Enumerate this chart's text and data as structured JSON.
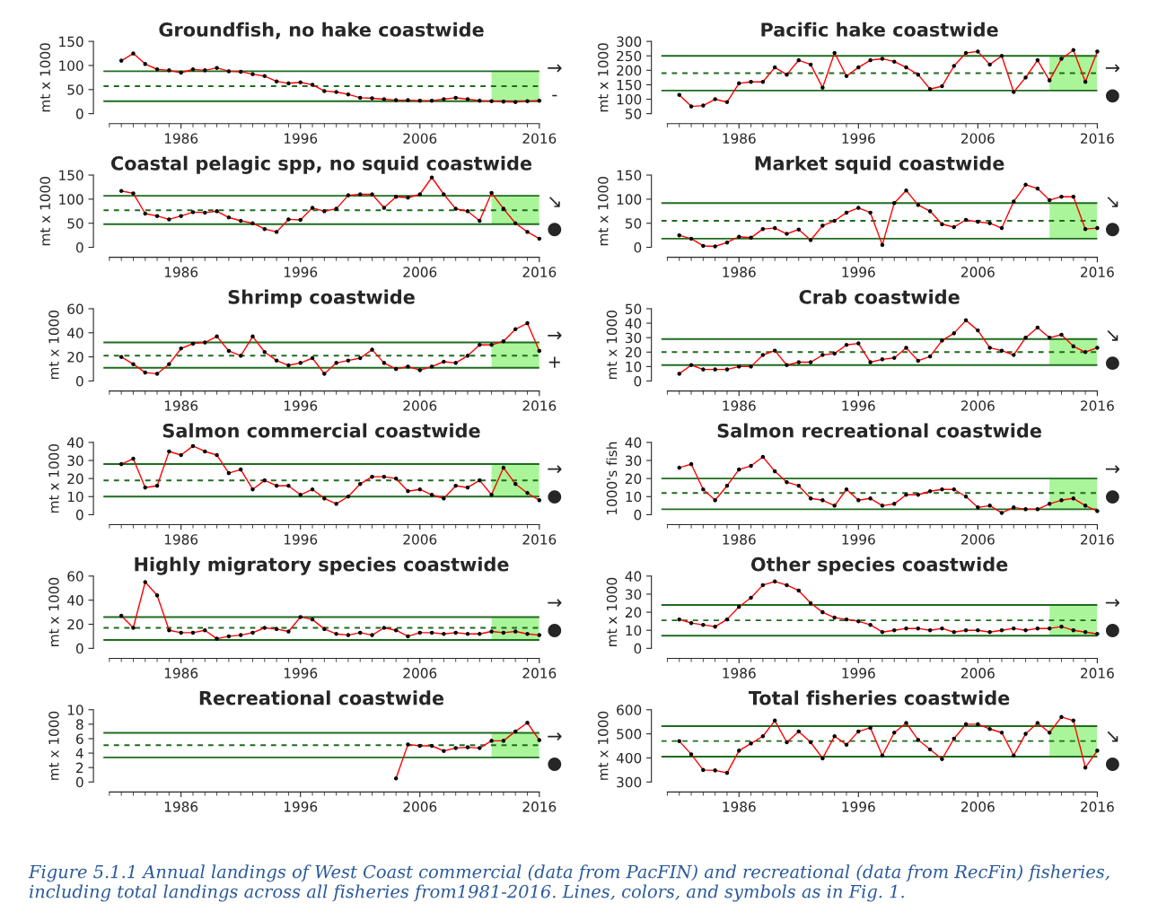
{
  "chart_data": [
    {
      "type": "line",
      "title": "Groundfish, no hake coastwide",
      "ylabel": "mt x 1000",
      "x": [
        1981,
        1982,
        1983,
        1984,
        1985,
        1986,
        1987,
        1988,
        1989,
        1990,
        1991,
        1992,
        1993,
        1994,
        1995,
        1996,
        1997,
        1998,
        1999,
        2000,
        2001,
        2002,
        2003,
        2004,
        2005,
        2006,
        2007,
        2008,
        2009,
        2010,
        2011,
        2012,
        2013,
        2014,
        2015,
        2016
      ],
      "series": [
        {
          "color": "#ff0000",
          "values": [
            110,
            125,
            103,
            92,
            90,
            85,
            92,
            90,
            95,
            88,
            87,
            82,
            78,
            67,
            63,
            65,
            60,
            47,
            45,
            40,
            33,
            32,
            30,
            28,
            28,
            27,
            27,
            30,
            33,
            30,
            27,
            26,
            25,
            24,
            26,
            27
          ]
        }
      ],
      "xlim": [
        1979.5,
        2016
      ],
      "xticks": [
        1986,
        1996,
        2006,
        2016
      ],
      "ylim": [
        0,
        150
      ],
      "yticks": [
        0,
        50,
        100,
        150
      ],
      "marker": "circle",
      "ref_lines": [
        {
          "axis": "y",
          "value": 88,
          "color": "#1e6b1e",
          "line_style": "solid"
        },
        {
          "axis": "y",
          "value": 57,
          "color": "#1e6b1e",
          "line_style": "dashed"
        },
        {
          "axis": "y",
          "value": 26,
          "color": "#1e6b1e",
          "line_style": "solid"
        }
      ],
      "bands": [
        {
          "axis": "x",
          "from": 2012,
          "to": 2016,
          "color": "#aaf59a"
        }
      ],
      "annotations": [
        "→",
        "-"
      ]
    },
    {
      "type": "line",
      "title": "Pacific hake coastwide",
      "ylabel": "mt x 1000",
      "x": [
        1981,
        1982,
        1983,
        1984,
        1985,
        1986,
        1987,
        1988,
        1989,
        1990,
        1991,
        1992,
        1993,
        1994,
        1995,
        1996,
        1997,
        1998,
        1999,
        2000,
        2001,
        2002,
        2003,
        2004,
        2005,
        2006,
        2007,
        2008,
        2009,
        2010,
        2011,
        2012,
        2013,
        2014,
        2015,
        2016
      ],
      "series": [
        {
          "color": "#ff0000",
          "values": [
            115,
            75,
            78,
            100,
            90,
            155,
            160,
            160,
            210,
            185,
            235,
            220,
            140,
            260,
            180,
            210,
            235,
            240,
            230,
            210,
            185,
            135,
            145,
            215,
            260,
            265,
            220,
            250,
            125,
            175,
            235,
            165,
            240,
            270,
            160,
            265
          ]
        }
      ],
      "xlim": [
        1979.5,
        2016
      ],
      "xticks": [
        1986,
        1996,
        2006,
        2016
      ],
      "ylim": [
        50,
        300
      ],
      "yticks": [
        50,
        100,
        150,
        200,
        250,
        300
      ],
      "marker": "circle",
      "ref_lines": [
        {
          "axis": "y",
          "value": 250,
          "color": "#1e6b1e",
          "line_style": "solid"
        },
        {
          "axis": "y",
          "value": 190,
          "color": "#1e6b1e",
          "line_style": "dashed"
        },
        {
          "axis": "y",
          "value": 130,
          "color": "#1e6b1e",
          "line_style": "solid"
        }
      ],
      "bands": [
        {
          "axis": "x",
          "from": 2012,
          "to": 2016,
          "color": "#aaf59a"
        }
      ],
      "annotations": [
        "→",
        "●"
      ]
    },
    {
      "type": "line",
      "title": "Coastal pelagic spp, no squid coastwide",
      "ylabel": "mt x 1000",
      "x": [
        1981,
        1982,
        1983,
        1984,
        1985,
        1986,
        1987,
        1988,
        1989,
        1990,
        1991,
        1992,
        1993,
        1994,
        1995,
        1996,
        1997,
        1998,
        1999,
        2000,
        2001,
        2002,
        2003,
        2004,
        2005,
        2006,
        2007,
        2008,
        2009,
        2010,
        2011,
        2012,
        2013,
        2014,
        2015,
        2016
      ],
      "series": [
        {
          "color": "#ff0000",
          "values": [
            117,
            112,
            70,
            65,
            58,
            65,
            73,
            72,
            75,
            62,
            55,
            50,
            38,
            32,
            58,
            57,
            82,
            75,
            80,
            108,
            110,
            110,
            82,
            105,
            103,
            110,
            145,
            110,
            80,
            75,
            55,
            113,
            80,
            50,
            32,
            18
          ]
        }
      ],
      "xlim": [
        1979.5,
        2016
      ],
      "xticks": [
        1986,
        1996,
        2006,
        2016
      ],
      "ylim": [
        0,
        150
      ],
      "yticks": [
        0,
        50,
        100,
        150
      ],
      "marker": "circle",
      "ref_lines": [
        {
          "axis": "y",
          "value": 107,
          "color": "#1e6b1e",
          "line_style": "solid"
        },
        {
          "axis": "y",
          "value": 77,
          "color": "#1e6b1e",
          "line_style": "dashed"
        },
        {
          "axis": "y",
          "value": 48,
          "color": "#1e6b1e",
          "line_style": "solid"
        }
      ],
      "bands": [
        {
          "axis": "x",
          "from": 2012,
          "to": 2016,
          "color": "#aaf59a"
        }
      ],
      "annotations": [
        "↘",
        "●"
      ]
    },
    {
      "type": "line",
      "title": "Market squid coastwide",
      "ylabel": "mt x 1000",
      "x": [
        1981,
        1982,
        1983,
        1984,
        1985,
        1986,
        1987,
        1988,
        1989,
        1990,
        1991,
        1992,
        1993,
        1994,
        1995,
        1996,
        1997,
        1998,
        1999,
        2000,
        2001,
        2002,
        2003,
        2004,
        2005,
        2006,
        2007,
        2008,
        2009,
        2010,
        2011,
        2012,
        2013,
        2014,
        2015,
        2016
      ],
      "series": [
        {
          "color": "#ff0000",
          "values": [
            25,
            18,
            3,
            2,
            10,
            22,
            20,
            38,
            40,
            28,
            37,
            15,
            45,
            55,
            72,
            82,
            72,
            5,
            92,
            118,
            88,
            75,
            48,
            42,
            57,
            53,
            50,
            40,
            95,
            130,
            122,
            98,
            105,
            105,
            38,
            40
          ]
        }
      ],
      "xlim": [
        1979.5,
        2016
      ],
      "xticks": [
        1986,
        1996,
        2006,
        2016
      ],
      "ylim": [
        0,
        150
      ],
      "yticks": [
        0,
        50,
        100,
        150
      ],
      "marker": "circle",
      "ref_lines": [
        {
          "axis": "y",
          "value": 92,
          "color": "#1e6b1e",
          "line_style": "solid"
        },
        {
          "axis": "y",
          "value": 55,
          "color": "#1e6b1e",
          "line_style": "dashed"
        },
        {
          "axis": "y",
          "value": 18,
          "color": "#1e6b1e",
          "line_style": "solid"
        }
      ],
      "bands": [
        {
          "axis": "x",
          "from": 2012,
          "to": 2016,
          "color": "#aaf59a"
        }
      ],
      "annotations": [
        "↘",
        "●"
      ]
    },
    {
      "type": "line",
      "title": "Shrimp coastwide",
      "ylabel": "mt x 1000",
      "x": [
        1981,
        1982,
        1983,
        1984,
        1985,
        1986,
        1987,
        1988,
        1989,
        1990,
        1991,
        1992,
        1993,
        1994,
        1995,
        1996,
        1997,
        1998,
        1999,
        2000,
        2001,
        2002,
        2003,
        2004,
        2005,
        2006,
        2007,
        2008,
        2009,
        2010,
        2011,
        2012,
        2013,
        2014,
        2015,
        2016
      ],
      "series": [
        {
          "color": "#ff0000",
          "values": [
            20,
            14,
            7,
            6,
            14,
            27,
            31,
            32,
            37,
            25,
            21,
            37,
            24,
            17,
            13,
            15,
            19,
            6,
            15,
            17,
            19,
            26,
            15,
            10,
            12,
            9,
            12,
            16,
            15,
            21,
            30,
            30,
            33,
            43,
            48,
            25
          ]
        }
      ],
      "xlim": [
        1979.5,
        2016
      ],
      "xticks": [
        1986,
        1996,
        2006,
        2016
      ],
      "ylim": [
        0,
        60
      ],
      "yticks": [
        0,
        20,
        40,
        60
      ],
      "marker": "circle",
      "ref_lines": [
        {
          "axis": "y",
          "value": 32,
          "color": "#1e6b1e",
          "line_style": "solid"
        },
        {
          "axis": "y",
          "value": 21,
          "color": "#1e6b1e",
          "line_style": "dashed"
        },
        {
          "axis": "y",
          "value": 11,
          "color": "#1e6b1e",
          "line_style": "solid"
        }
      ],
      "bands": [
        {
          "axis": "x",
          "from": 2012,
          "to": 2016,
          "color": "#aaf59a"
        }
      ],
      "annotations": [
        "→",
        "+"
      ]
    },
    {
      "type": "line",
      "title": "Crab coastwide",
      "ylabel": "mt x 1000",
      "x": [
        1981,
        1982,
        1983,
        1984,
        1985,
        1986,
        1987,
        1988,
        1989,
        1990,
        1991,
        1992,
        1993,
        1994,
        1995,
        1996,
        1997,
        1998,
        1999,
        2000,
        2001,
        2002,
        2003,
        2004,
        2005,
        2006,
        2007,
        2008,
        2009,
        2010,
        2011,
        2012,
        2013,
        2014,
        2015,
        2016
      ],
      "series": [
        {
          "color": "#ff0000",
          "values": [
            5,
            11,
            8,
            8,
            8,
            10,
            10,
            18,
            21,
            11,
            13,
            13,
            18,
            19,
            25,
            26,
            13,
            15,
            16,
            23,
            14,
            17,
            28,
            33,
            42,
            35,
            23,
            21,
            18,
            30,
            37,
            30,
            32,
            24,
            20,
            23
          ]
        }
      ],
      "xlim": [
        1979.5,
        2016
      ],
      "xticks": [
        1986,
        1996,
        2006,
        2016
      ],
      "ylim": [
        0,
        50
      ],
      "yticks": [
        0,
        10,
        20,
        30,
        40,
        50
      ],
      "marker": "circle",
      "ref_lines": [
        {
          "axis": "y",
          "value": 29,
          "color": "#1e6b1e",
          "line_style": "solid"
        },
        {
          "axis": "y",
          "value": 20,
          "color": "#1e6b1e",
          "line_style": "dashed"
        },
        {
          "axis": "y",
          "value": 11,
          "color": "#1e6b1e",
          "line_style": "solid"
        }
      ],
      "bands": [
        {
          "axis": "x",
          "from": 2012,
          "to": 2016,
          "color": "#aaf59a"
        }
      ],
      "annotations": [
        "↘",
        "●"
      ]
    },
    {
      "type": "line",
      "title": "Salmon commercial coastwide",
      "ylabel": "mt x 1000",
      "x": [
        1981,
        1982,
        1983,
        1984,
        1985,
        1986,
        1987,
        1988,
        1989,
        1990,
        1991,
        1992,
        1993,
        1994,
        1995,
        1996,
        1997,
        1998,
        1999,
        2000,
        2001,
        2002,
        2003,
        2004,
        2005,
        2006,
        2007,
        2008,
        2009,
        2010,
        2011,
        2012,
        2013,
        2014,
        2015,
        2016
      ],
      "series": [
        {
          "color": "#ff0000",
          "values": [
            28,
            31,
            15,
            16,
            35,
            33,
            38,
            35,
            33,
            23,
            25,
            14,
            19,
            16,
            16,
            11,
            14,
            9,
            6,
            10,
            17,
            21,
            21,
            20,
            13,
            14,
            11,
            9,
            16,
            15,
            19,
            11,
            26,
            17,
            12,
            8
          ]
        }
      ],
      "xlim": [
        1979.5,
        2016
      ],
      "xticks": [
        1986,
        1996,
        2006,
        2016
      ],
      "ylim": [
        0,
        40
      ],
      "yticks": [
        0,
        10,
        20,
        30,
        40
      ],
      "marker": "circle",
      "ref_lines": [
        {
          "axis": "y",
          "value": 28,
          "color": "#1e6b1e",
          "line_style": "solid"
        },
        {
          "axis": "y",
          "value": 19,
          "color": "#1e6b1e",
          "line_style": "dashed"
        },
        {
          "axis": "y",
          "value": 10,
          "color": "#1e6b1e",
          "line_style": "solid"
        }
      ],
      "bands": [
        {
          "axis": "x",
          "from": 2012,
          "to": 2016,
          "color": "#aaf59a"
        }
      ],
      "annotations": [
        "→",
        "●"
      ]
    },
    {
      "type": "line",
      "title": "Salmon recreational coastwide",
      "ylabel": "1000's fish",
      "x": [
        1981,
        1982,
        1983,
        1984,
        1985,
        1986,
        1987,
        1988,
        1989,
        1990,
        1991,
        1992,
        1993,
        1994,
        1995,
        1996,
        1997,
        1998,
        1999,
        2000,
        2001,
        2002,
        2003,
        2004,
        2005,
        2006,
        2007,
        2008,
        2009,
        2010,
        2011,
        2012,
        2013,
        2014,
        2015,
        2016
      ],
      "series": [
        {
          "color": "#ff0000",
          "values": [
            26,
            28,
            14,
            8,
            16,
            25,
            27,
            32,
            24,
            18,
            16,
            9,
            8,
            5,
            14,
            8,
            9,
            5,
            6,
            11,
            11,
            13,
            14,
            14,
            10,
            4,
            5,
            1,
            4,
            3,
            3,
            6,
            8,
            9,
            5,
            2
          ]
        }
      ],
      "xlim": [
        1979.5,
        2016
      ],
      "xticks": [
        1986,
        1996,
        2006,
        2016
      ],
      "ylim": [
        0,
        40
      ],
      "yticks": [
        0,
        10,
        20,
        30,
        40
      ],
      "marker": "circle",
      "ref_lines": [
        {
          "axis": "y",
          "value": 20,
          "color": "#1e6b1e",
          "line_style": "solid"
        },
        {
          "axis": "y",
          "value": 12,
          "color": "#1e6b1e",
          "line_style": "dashed"
        },
        {
          "axis": "y",
          "value": 3,
          "color": "#1e6b1e",
          "line_style": "solid"
        }
      ],
      "bands": [
        {
          "axis": "x",
          "from": 2012,
          "to": 2016,
          "color": "#aaf59a"
        }
      ],
      "annotations": [
        "→",
        "●"
      ]
    },
    {
      "type": "line",
      "title": "Highly migratory species coastwide",
      "ylabel": "mt x 1000",
      "x": [
        1981,
        1982,
        1983,
        1984,
        1985,
        1986,
        1987,
        1988,
        1989,
        1990,
        1991,
        1992,
        1993,
        1994,
        1995,
        1996,
        1997,
        1998,
        1999,
        2000,
        2001,
        2002,
        2003,
        2004,
        2005,
        2006,
        2007,
        2008,
        2009,
        2010,
        2011,
        2012,
        2013,
        2014,
        2015,
        2016
      ],
      "series": [
        {
          "color": "#ff0000",
          "values": [
            27,
            17,
            55,
            44,
            15,
            13,
            13,
            15,
            8,
            10,
            11,
            13,
            17,
            16,
            14,
            26,
            24,
            16,
            12,
            11,
            13,
            11,
            17,
            15,
            10,
            13,
            13,
            12,
            13,
            12,
            12,
            14,
            13,
            14,
            12,
            11
          ]
        }
      ],
      "xlim": [
        1979.5,
        2016
      ],
      "xticks": [
        1986,
        1996,
        2006,
        2016
      ],
      "ylim": [
        0,
        60
      ],
      "yticks": [
        0,
        20,
        40,
        60
      ],
      "marker": "circle",
      "ref_lines": [
        {
          "axis": "y",
          "value": 26,
          "color": "#1e6b1e",
          "line_style": "solid"
        },
        {
          "axis": "y",
          "value": 17,
          "color": "#1e6b1e",
          "line_style": "dashed"
        },
        {
          "axis": "y",
          "value": 7,
          "color": "#1e6b1e",
          "line_style": "solid"
        }
      ],
      "bands": [
        {
          "axis": "x",
          "from": 2012,
          "to": 2016,
          "color": "#aaf59a"
        }
      ],
      "annotations": [
        "→",
        "●"
      ]
    },
    {
      "type": "line",
      "title": "Other species coastwide",
      "ylabel": "mt x 1000",
      "x": [
        1981,
        1982,
        1983,
        1984,
        1985,
        1986,
        1987,
        1988,
        1989,
        1990,
        1991,
        1992,
        1993,
        1994,
        1995,
        1996,
        1997,
        1998,
        1999,
        2000,
        2001,
        2002,
        2003,
        2004,
        2005,
        2006,
        2007,
        2008,
        2009,
        2010,
        2011,
        2012,
        2013,
        2014,
        2015,
        2016
      ],
      "series": [
        {
          "color": "#ff0000",
          "values": [
            16,
            14,
            13,
            12,
            16,
            23,
            28,
            35,
            37,
            35,
            32,
            25,
            20,
            17,
            16,
            15,
            13,
            9,
            10,
            11,
            11,
            10,
            11,
            9,
            10,
            10,
            9,
            10,
            11,
            10,
            11,
            11,
            12,
            10,
            9,
            8
          ]
        }
      ],
      "xlim": [
        1979.5,
        2016
      ],
      "xticks": [
        1986,
        1996,
        2006,
        2016
      ],
      "ylim": [
        0,
        40
      ],
      "yticks": [
        0,
        10,
        20,
        30,
        40
      ],
      "marker": "circle",
      "ref_lines": [
        {
          "axis": "y",
          "value": 24,
          "color": "#1e6b1e",
          "line_style": "solid"
        },
        {
          "axis": "y",
          "value": 15.5,
          "color": "#1e6b1e",
          "line_style": "dashed"
        },
        {
          "axis": "y",
          "value": 7,
          "color": "#1e6b1e",
          "line_style": "solid"
        }
      ],
      "bands": [
        {
          "axis": "x",
          "from": 2012,
          "to": 2016,
          "color": "#aaf59a"
        }
      ],
      "annotations": [
        "→",
        "●"
      ]
    },
    {
      "type": "line",
      "title": "Recreational coastwide",
      "ylabel": "mt x 1000",
      "series": [
        {
          "color": "#ff0000",
          "x": [
            2004,
            2005,
            2006,
            2007,
            2008,
            2009,
            2010,
            2011,
            2012,
            2013,
            2014,
            2015,
            2016
          ],
          "values": [
            0.5,
            5.2,
            5.0,
            5.0,
            4.3,
            4.7,
            4.8,
            4.7,
            5.7,
            5.7,
            7.0,
            8.2,
            5.8
          ]
        }
      ],
      "xlim": [
        1979.5,
        2016
      ],
      "xticks": [
        1986,
        1996,
        2006,
        2016
      ],
      "ylim": [
        0,
        10
      ],
      "yticks": [
        0,
        2,
        4,
        6,
        8,
        10
      ],
      "marker": "circle",
      "ref_lines": [
        {
          "axis": "y",
          "value": 6.8,
          "color": "#1e6b1e",
          "line_style": "solid"
        },
        {
          "axis": "y",
          "value": 5.1,
          "color": "#1e6b1e",
          "line_style": "dashed"
        },
        {
          "axis": "y",
          "value": 3.4,
          "color": "#1e6b1e",
          "line_style": "solid"
        }
      ],
      "bands": [
        {
          "axis": "x",
          "from": 2012,
          "to": 2016,
          "color": "#aaf59a"
        }
      ],
      "annotations": [
        "→",
        "●"
      ]
    },
    {
      "type": "line",
      "title": "Total fisheries coastwide",
      "ylabel": "mt x 1000",
      "x": [
        1981,
        1982,
        1983,
        1984,
        1985,
        1986,
        1987,
        1988,
        1989,
        1990,
        1991,
        1992,
        1993,
        1994,
        1995,
        1996,
        1997,
        1998,
        1999,
        2000,
        2001,
        2002,
        2003,
        2004,
        2005,
        2006,
        2007,
        2008,
        2009,
        2010,
        2011,
        2012,
        2013,
        2014,
        2015,
        2016
      ],
      "series": [
        {
          "color": "#ff0000",
          "values": [
            470,
            415,
            350,
            348,
            338,
            430,
            460,
            490,
            555,
            465,
            510,
            465,
            398,
            490,
            455,
            510,
            525,
            410,
            505,
            545,
            475,
            435,
            395,
            480,
            540,
            540,
            520,
            505,
            410,
            500,
            545,
            505,
            570,
            555,
            360,
            430
          ]
        }
      ],
      "xlim": [
        1979.5,
        2016
      ],
      "xticks": [
        1986,
        1996,
        2006,
        2016
      ],
      "ylim": [
        300,
        600
      ],
      "yticks": [
        300,
        400,
        500,
        600
      ],
      "marker": "circle",
      "ref_lines": [
        {
          "axis": "y",
          "value": 532,
          "color": "#1e6b1e",
          "line_style": "solid"
        },
        {
          "axis": "y",
          "value": 470,
          "color": "#1e6b1e",
          "line_style": "dashed"
        },
        {
          "axis": "y",
          "value": 405,
          "color": "#1e6b1e",
          "line_style": "solid"
        }
      ],
      "bands": [
        {
          "axis": "x",
          "from": 2012,
          "to": 2016,
          "color": "#aaf59a"
        }
      ],
      "annotations": [
        "↘",
        "●",
        "Figure 5.1.1 Annual landings of West Coast commercial (data from PacFIN) and recreational (data from RecFin) fisheries, including total landings across all fisheries from1981-2016. Lines, colors, and symbols as in Fig. 1."
      ]
    }
  ]
}
